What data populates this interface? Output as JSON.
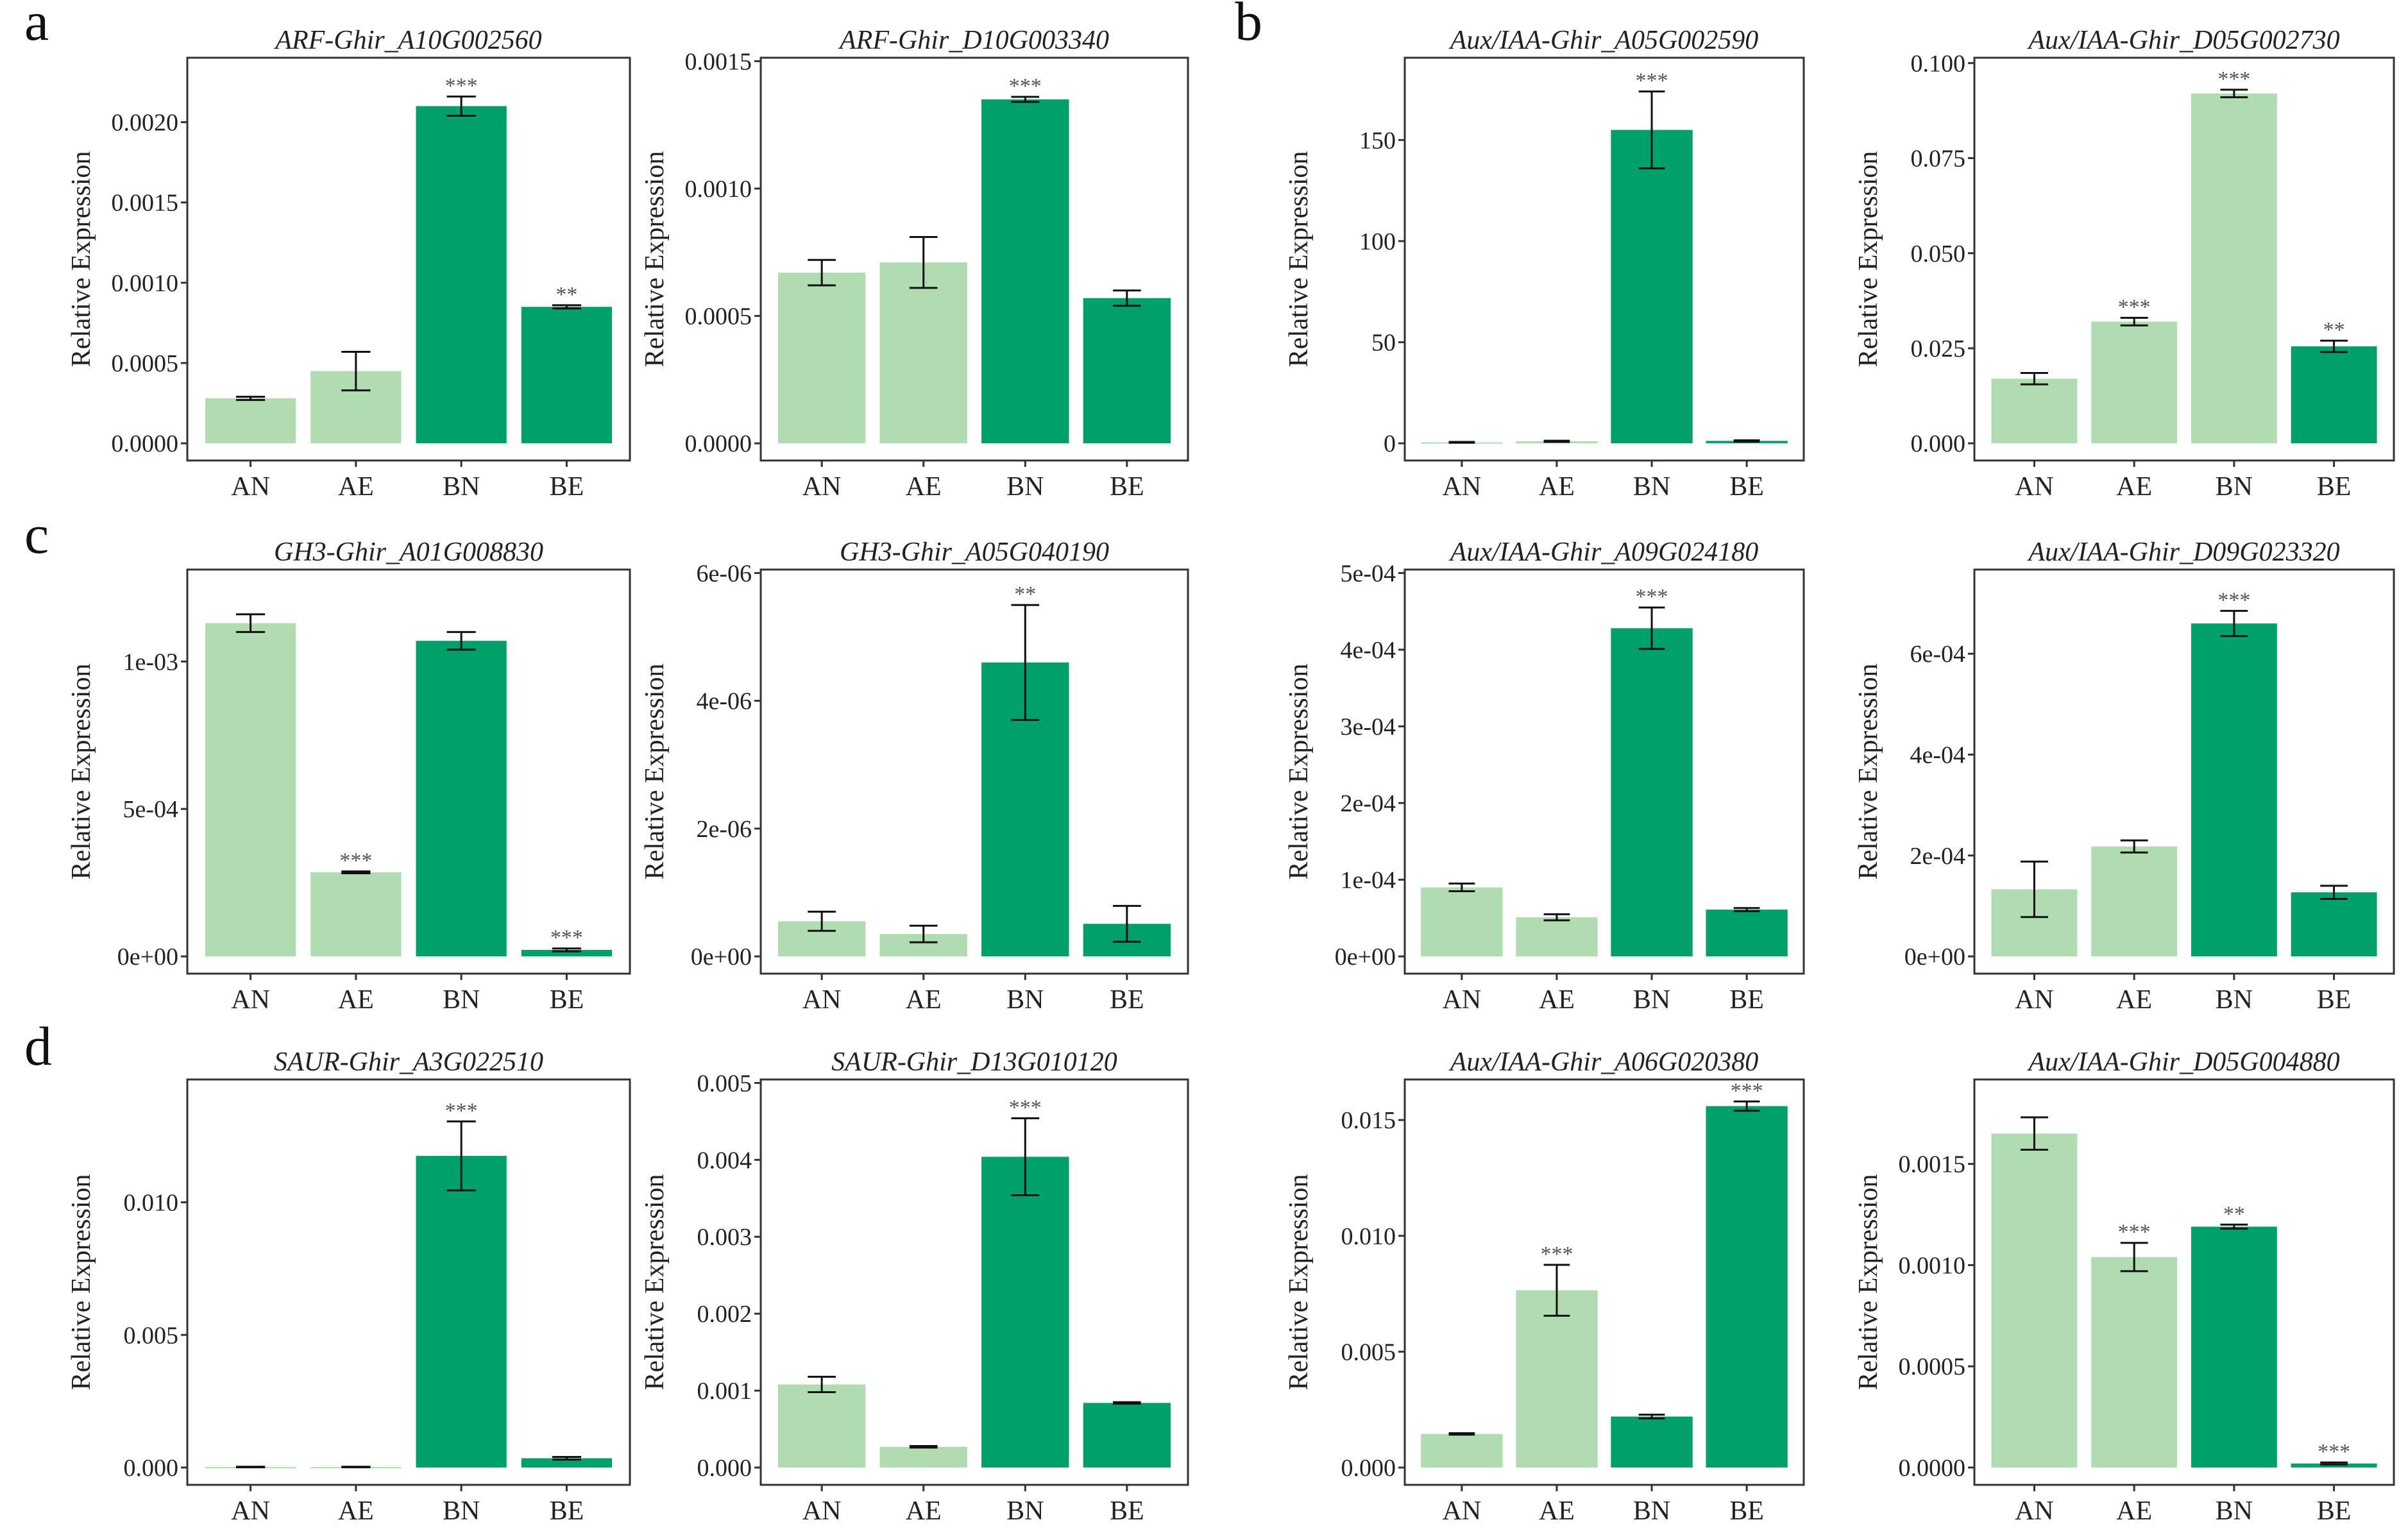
{
  "figure": {
    "y_axis_label": "Relative Expression",
    "significance_color": "#555555"
  },
  "colors": {
    "light_bar": "#b1dcb1",
    "dark_bar": "#00a06a",
    "axis": "#333333",
    "text": "#222222"
  },
  "chart_data": [
    {
      "type": "bar",
      "panel_letter": "a",
      "title": "ARF-Ghir_A10G002560",
      "categories": [
        "AN",
        "AE",
        "BN",
        "BE"
      ],
      "bar_shade": [
        "light",
        "light",
        "dark",
        "dark"
      ],
      "values": [
        0.00028,
        0.00045,
        0.0021,
        0.00085
      ],
      "errors": [
        1e-05,
        0.00012,
        6e-05,
        1e-05
      ],
      "significance": [
        "",
        "",
        "***",
        "**"
      ],
      "ylim": [
        0,
        0.00238
      ],
      "y_ticks": [
        0,
        0.0005,
        0.001,
        0.0015,
        0.002
      ],
      "y_tick_labels": [
        "0.0000",
        "0.0005",
        "0.0010",
        "0.0015",
        "0.0020"
      ],
      "ylabel": "Relative Expression"
    },
    {
      "type": "bar",
      "panel_letter": "",
      "title": "ARF-Ghir_D10G003340",
      "categories": [
        "AN",
        "AE",
        "BN",
        "BE"
      ],
      "bar_shade": [
        "light",
        "light",
        "dark",
        "dark"
      ],
      "values": [
        0.00067,
        0.00071,
        0.00135,
        0.00057
      ],
      "errors": [
        5e-05,
        0.0001,
        1e-05,
        3e-05
      ],
      "significance": [
        "",
        "",
        "***",
        ""
      ],
      "ylim": [
        0,
        0.0015
      ],
      "y_ticks": [
        0,
        0.0005,
        0.001,
        0.0015
      ],
      "y_tick_labels": [
        "0.0000",
        "0.0005",
        "0.0010",
        "0.0015"
      ],
      "ylabel": "Relative Expression"
    },
    {
      "type": "bar",
      "panel_letter": "b",
      "title": "Aux/IAA-Ghir_A05G002590",
      "categories": [
        "AN",
        "AE",
        "BN",
        "BE"
      ],
      "bar_shade": [
        "light",
        "light",
        "dark",
        "dark"
      ],
      "values": [
        0.5,
        1.0,
        155,
        1.2
      ],
      "errors": [
        0.2,
        0.3,
        19,
        0.3
      ],
      "significance": [
        "",
        "",
        "***",
        ""
      ],
      "ylim": [
        0,
        189
      ],
      "y_ticks": [
        0,
        50,
        100,
        150
      ],
      "y_tick_labels": [
        "0",
        "50",
        "100",
        "150"
      ],
      "ylabel": "Relative Expression"
    },
    {
      "type": "bar",
      "panel_letter": "",
      "title": "Aux/IAA-Ghir_D05G002730",
      "categories": [
        "AN",
        "AE",
        "BN",
        "BE"
      ],
      "bar_shade": [
        "light",
        "light",
        "light",
        "dark"
      ],
      "values": [
        0.017,
        0.032,
        0.092,
        0.0255
      ],
      "errors": [
        0.0015,
        0.001,
        0.001,
        0.0015
      ],
      "significance": [
        "",
        "***",
        "***",
        "**"
      ],
      "ylim": [
        0,
        0.1005
      ],
      "y_ticks": [
        0,
        0.025,
        0.05,
        0.075,
        0.1
      ],
      "y_tick_labels": [
        "0.000",
        "0.025",
        "0.050",
        "0.075",
        "0.100"
      ],
      "ylabel": "Relative Expression"
    },
    {
      "type": "bar",
      "panel_letter": "c",
      "title": "GH3-Ghir_A01G008830",
      "categories": [
        "AN",
        "AE",
        "BN",
        "BE"
      ],
      "bar_shade": [
        "light",
        "light",
        "dark",
        "dark"
      ],
      "values": [
        0.00113,
        0.000285,
        0.00107,
        2.2e-05
      ],
      "errors": [
        3e-05,
        3e-06,
        3e-05,
        5e-06
      ],
      "significance": [
        "",
        "***",
        "",
        "***"
      ],
      "ylim": [
        0,
        0.0013
      ],
      "y_ticks": [
        0,
        0.0005,
        0.001
      ],
      "y_tick_labels": [
        "0e+00",
        "5e-04",
        "1e-03"
      ],
      "ylabel": "Relative Expression"
    },
    {
      "type": "bar",
      "panel_letter": "",
      "title": "GH3-Ghir_A05G040190",
      "categories": [
        "AN",
        "AE",
        "BN",
        "BE"
      ],
      "bar_shade": [
        "light",
        "light",
        "dark",
        "dark"
      ],
      "values": [
        5.5e-07,
        3.5e-07,
        4.6e-06,
        5.1e-07
      ],
      "errors": [
        1.5e-07,
        1.3e-07,
        9e-07,
        2.8e-07
      ],
      "significance": [
        "",
        "",
        "**",
        ""
      ],
      "ylim": [
        0,
        6e-06
      ],
      "y_ticks": [
        0,
        2e-06,
        4e-06,
        6e-06
      ],
      "y_tick_labels": [
        "0e+00",
        "2e-06",
        "4e-06",
        "6e-06"
      ],
      "ylabel": "Relative Expression"
    },
    {
      "type": "bar",
      "panel_letter": "",
      "title": "Aux/IAA-Ghir_A09G024180",
      "categories": [
        "AN",
        "AE",
        "BN",
        "BE"
      ],
      "bar_shade": [
        "light",
        "light",
        "dark",
        "dark"
      ],
      "values": [
        9e-05,
        5.1e-05,
        0.000428,
        6.1e-05
      ],
      "errors": [
        5e-06,
        4e-06,
        2.7e-05,
        2e-06
      ],
      "significance": [
        "",
        "",
        "***",
        ""
      ],
      "ylim": [
        0,
        0.0005
      ],
      "y_ticks": [
        0,
        0.0001,
        0.0002,
        0.0003,
        0.0004,
        0.0005
      ],
      "y_tick_labels": [
        "0e+00",
        "1e-04",
        "2e-04",
        "3e-04",
        "4e-04",
        "5e-04"
      ],
      "ylabel": "Relative Expression"
    },
    {
      "type": "bar",
      "panel_letter": "",
      "title": "Aux/IAA-Ghir_D09G023320",
      "categories": [
        "AN",
        "AE",
        "BN",
        "BE"
      ],
      "bar_shade": [
        "light",
        "light",
        "dark",
        "dark"
      ],
      "values": [
        0.000133,
        0.000218,
        0.00066,
        0.000127
      ],
      "errors": [
        5.5e-05,
        1.2e-05,
        2.5e-05,
        1.3e-05
      ],
      "significance": [
        "",
        "",
        "***",
        ""
      ],
      "ylim": [
        0,
        0.00076
      ],
      "y_ticks": [
        0,
        0.0002,
        0.0004,
        0.0006
      ],
      "y_tick_labels": [
        "0e+00",
        "2e-04",
        "4e-04",
        "6e-04"
      ],
      "ylabel": "Relative Expression"
    },
    {
      "type": "bar",
      "panel_letter": "d",
      "title": "SAUR-Ghir_A3G022510",
      "categories": [
        "AN",
        "AE",
        "BN",
        "BE"
      ],
      "bar_shade": [
        "light",
        "light",
        "dark",
        "dark"
      ],
      "values": [
        2e-05,
        2e-05,
        0.01175,
        0.00035
      ],
      "errors": [
        1e-05,
        1e-05,
        0.0013,
        5e-05
      ],
      "significance": [
        "",
        "",
        "***",
        ""
      ],
      "ylim": [
        0,
        0.0145
      ],
      "y_ticks": [
        0,
        0.005,
        0.01
      ],
      "y_tick_labels": [
        "0.000",
        "0.005",
        "0.010"
      ],
      "ylabel": "Relative Expression"
    },
    {
      "type": "bar",
      "panel_letter": "",
      "title": "SAUR-Ghir_D13G010120",
      "categories": [
        "AN",
        "AE",
        "BN",
        "BE"
      ],
      "bar_shade": [
        "light",
        "light",
        "dark",
        "dark"
      ],
      "values": [
        0.00108,
        0.00027,
        0.00404,
        0.00084
      ],
      "errors": [
        0.0001,
        1e-05,
        0.0005,
        1e-05
      ],
      "significance": [
        "",
        "",
        "***",
        ""
      ],
      "ylim": [
        0,
        0.005
      ],
      "y_ticks": [
        0,
        0.001,
        0.002,
        0.003,
        0.004,
        0.005
      ],
      "y_tick_labels": [
        "0.000",
        "0.001",
        "0.002",
        "0.003",
        "0.004",
        "0.005"
      ],
      "ylabel": "Relative Expression"
    },
    {
      "type": "bar",
      "panel_letter": "",
      "title": "Aux/IAA-Ghir_A06G020380",
      "categories": [
        "AN",
        "AE",
        "BN",
        "BE"
      ],
      "bar_shade": [
        "light",
        "light",
        "dark",
        "dark"
      ],
      "values": [
        0.00145,
        0.00765,
        0.0022,
        0.0156
      ],
      "errors": [
        3e-05,
        0.0011,
        8e-05,
        0.0002
      ],
      "significance": [
        "",
        "***",
        "",
        "***"
      ],
      "ylim": [
        0,
        0.0166
      ],
      "y_ticks": [
        0,
        0.005,
        0.01,
        0.015
      ],
      "y_tick_labels": [
        "0.000",
        "0.005",
        "0.010",
        "0.015"
      ],
      "ylabel": "Relative Expression"
    },
    {
      "type": "bar",
      "panel_letter": "",
      "title": "Aux/IAA-Ghir_D05G004880",
      "categories": [
        "AN",
        "AE",
        "BN",
        "BE"
      ],
      "bar_shade": [
        "light",
        "light",
        "dark",
        "dark"
      ],
      "values": [
        0.00165,
        0.00104,
        0.00119,
        2e-05
      ],
      "errors": [
        8e-05,
        7e-05,
        1e-05,
        5e-06
      ],
      "significance": [
        "",
        "***",
        "**",
        "***"
      ],
      "ylim": [
        0,
        0.0019
      ],
      "y_ticks": [
        0,
        0.0005,
        0.001,
        0.0015
      ],
      "y_tick_labels": [
        "0.0000",
        "0.0005",
        "0.0010",
        "0.0015"
      ],
      "ylabel": "Relative Expression"
    }
  ]
}
